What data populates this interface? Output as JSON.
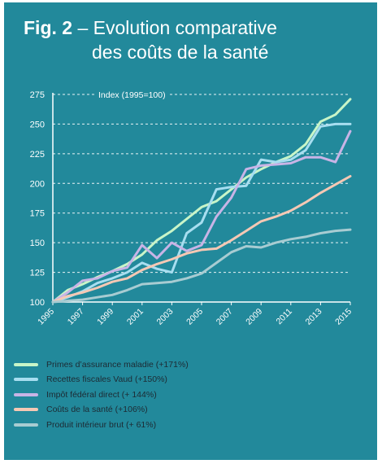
{
  "header": {
    "fig": "Fig. 2",
    "title_line1": "– Evolution comparative",
    "title_line2": "des coûts de la santé"
  },
  "chart_data": {
    "type": "line",
    "ylabel": "Index (1995=100)",
    "ylim": [
      100,
      275
    ],
    "yticks": [
      100,
      125,
      150,
      175,
      200,
      225,
      250,
      275
    ],
    "xlim": [
      1995,
      2015
    ],
    "xticks": [
      1995,
      1997,
      1999,
      2001,
      2003,
      2005,
      2007,
      2009,
      2011,
      2013,
      2015
    ],
    "grid": "horizontal",
    "legend_position": "bottom",
    "series": [
      {
        "name": "Primes d’assurance maladie (+171%)",
        "color": "#c8f5c8",
        "x": [
          1995,
          1996,
          1997,
          1998,
          1999,
          2000,
          2001,
          2002,
          2003,
          2004,
          2005,
          2006,
          2007,
          2008,
          2009,
          2010,
          2011,
          2012,
          2013,
          2014,
          2015
        ],
        "values": [
          100,
          110,
          115,
          121,
          126,
          132,
          140,
          152,
          160,
          170,
          180,
          185,
          195,
          205,
          212,
          218,
          223,
          233,
          252,
          258,
          271
        ]
      },
      {
        "name": "Recettes fiscales Vaud (+150%)",
        "color": "#a7def0",
        "x": [
          1995,
          1996,
          1997,
          1998,
          1999,
          2000,
          2001,
          2002,
          2003,
          2004,
          2005,
          2006,
          2007,
          2008,
          2009,
          2010,
          2011,
          2012,
          2013,
          2014,
          2015
        ],
        "values": [
          100,
          104,
          109,
          116,
          120,
          125,
          133,
          128,
          125,
          158,
          167,
          195,
          197,
          198,
          220,
          218,
          220,
          228,
          248,
          250,
          250
        ]
      },
      {
        "name": "Impôt fédéral direct (+ 144%)",
        "color": "#c8b4e6",
        "x": [
          1995,
          1996,
          1997,
          1998,
          1999,
          2000,
          2001,
          2002,
          2003,
          2004,
          2005,
          2006,
          2007,
          2008,
          2009,
          2010,
          2011,
          2012,
          2013,
          2014,
          2015
        ],
        "values": [
          100,
          108,
          118,
          120,
          126,
          129,
          148,
          137,
          150,
          143,
          148,
          172,
          188,
          212,
          215,
          216,
          217,
          222,
          222,
          218,
          244
        ]
      },
      {
        "name": "Coûts de la santé (+106%)",
        "color": "#f5c8b4",
        "x": [
          1995,
          1996,
          1997,
          1998,
          1999,
          2000,
          2001,
          2002,
          2003,
          2004,
          2005,
          2006,
          2007,
          2008,
          2009,
          2010,
          2011,
          2012,
          2013,
          2014,
          2015
        ],
        "values": [
          100,
          105,
          108,
          112,
          117,
          120,
          127,
          132,
          136,
          141,
          144,
          145,
          152,
          160,
          168,
          172,
          177,
          184,
          192,
          199,
          206
        ]
      },
      {
        "name": "Produit intérieur brut (+ 61%)",
        "color": "#a8ccd2",
        "x": [
          1995,
          1996,
          1997,
          1998,
          1999,
          2000,
          2001,
          2002,
          2003,
          2004,
          2005,
          2006,
          2007,
          2008,
          2009,
          2010,
          2011,
          2012,
          2013,
          2014,
          2015
        ],
        "values": [
          100,
          101,
          102,
          104,
          106,
          110,
          115,
          116,
          117,
          120,
          124,
          133,
          142,
          147,
          146,
          150,
          153,
          155,
          158,
          160,
          161
        ]
      }
    ]
  }
}
